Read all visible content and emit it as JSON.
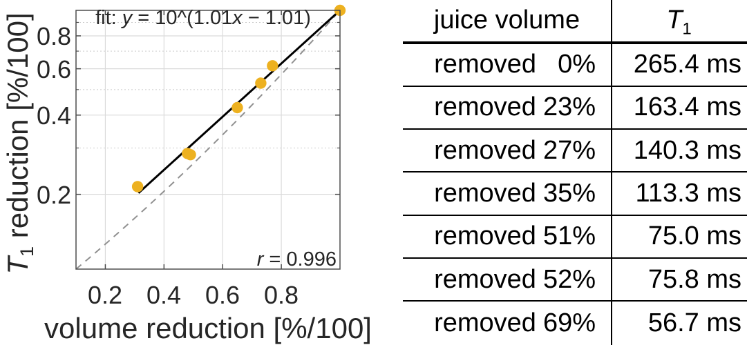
{
  "chart_data": {
    "type": "scatter",
    "title": "",
    "xlabel": "volume reduction [%/100]",
    "ylabel_main": "T",
    "ylabel_sub": "1",
    "ylabel_rest": " reduction [%/100]",
    "x_scale": "linear",
    "y_scale": "log",
    "xlim": [
      0.1,
      1.0
    ],
    "ylim": [
      0.104,
      1.0
    ],
    "xticks": [
      0.2,
      0.4,
      0.6,
      0.8
    ],
    "xtick_labels": [
      "0.2",
      "0.4",
      "0.6",
      "0.8"
    ],
    "yticks": [
      0.2,
      0.4,
      0.6,
      0.8
    ],
    "ytick_labels": [
      "0.2",
      "0.4",
      "0.6",
      "0.8"
    ],
    "yticks_minor": [
      0.3,
      0.5,
      0.7,
      0.9
    ],
    "grid": true,
    "legend": "none",
    "points": [
      {
        "x": 0.31,
        "y": 0.214
      },
      {
        "x": 0.48,
        "y": 0.286
      },
      {
        "x": 0.49,
        "y": 0.283
      },
      {
        "x": 0.65,
        "y": 0.427
      },
      {
        "x": 0.73,
        "y": 0.529
      },
      {
        "x": 0.77,
        "y": 0.616
      },
      {
        "x": 1.0,
        "y": 1.0
      }
    ],
    "fit": {
      "a": 1.01,
      "b": -1.01,
      "x_range": [
        0.313,
        1.0
      ],
      "label_prefix": "fit: ",
      "label_y": "y",
      "label_mid": " = 10^(1.01",
      "label_x": "x",
      "label_suffix": " − 1.01)"
    },
    "r_var": "r",
    "r_rest": " = 0.996",
    "marker_color": "#EDB120",
    "fit_color": "#000000",
    "reference_line_color": "#909090",
    "grid_color": "#DBDBDB",
    "minor_grid_color": "#C9C9C9",
    "axes_color": "#4D4D4D"
  },
  "table": {
    "header": {
      "col1": "juice volume",
      "col2_main": "T",
      "col2_sub": "1"
    },
    "rows": [
      {
        "label": "removed",
        "pct": "0%",
        "t1": "265.4 ms"
      },
      {
        "label": "removed",
        "pct": "23%",
        "t1": "163.4 ms"
      },
      {
        "label": "removed",
        "pct": "27%",
        "t1": "140.3 ms"
      },
      {
        "label": "removed",
        "pct": "35%",
        "t1": "113.3 ms"
      },
      {
        "label": "removed",
        "pct": "51%",
        "t1": "75.0 ms"
      },
      {
        "label": "removed",
        "pct": "52%",
        "t1": "75.8 ms"
      },
      {
        "label": "removed",
        "pct": "69%",
        "t1": "56.7 ms"
      }
    ]
  }
}
